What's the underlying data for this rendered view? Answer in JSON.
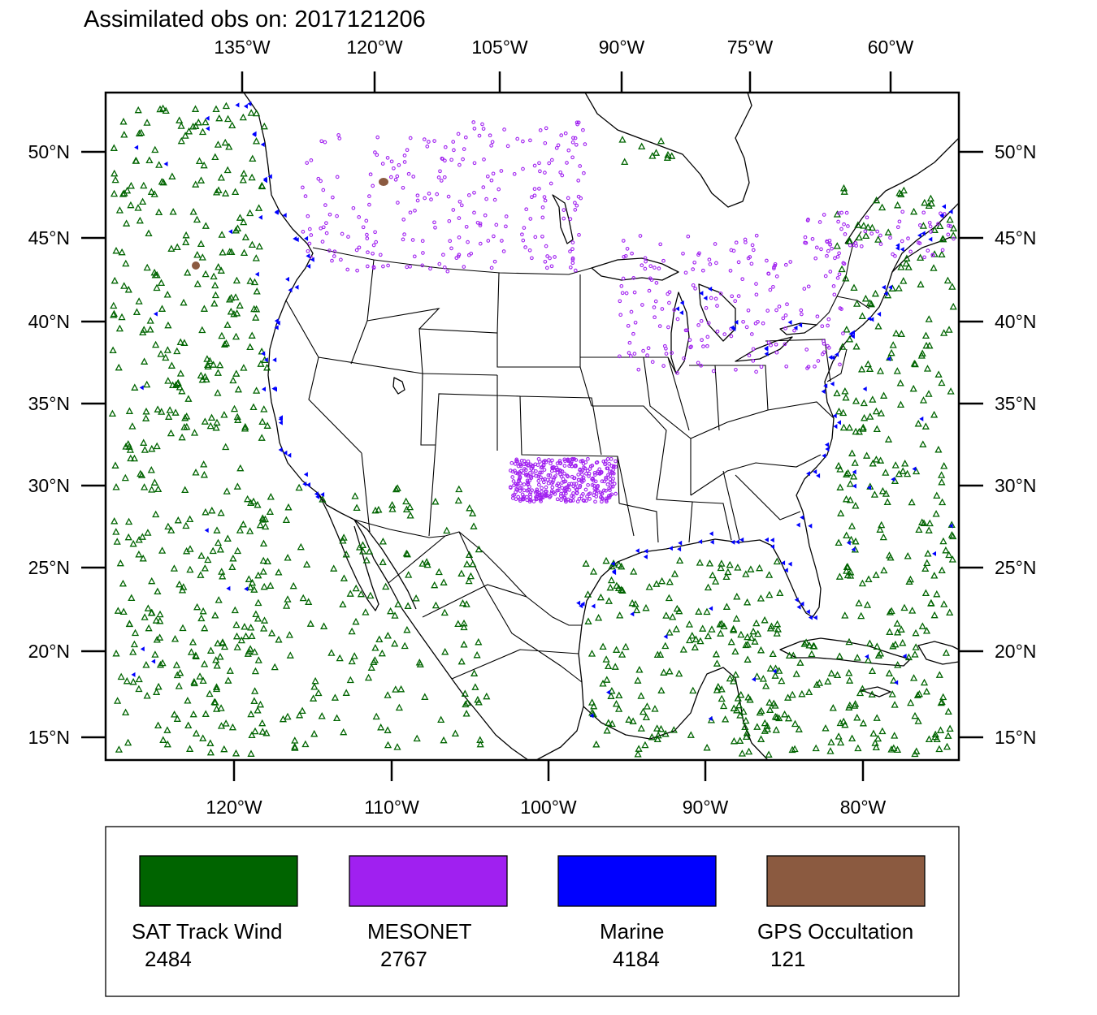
{
  "title": "Assimilated obs on: 2017121206",
  "axes": {
    "top_labels": [
      "135°W",
      "120°W",
      "105°W",
      "90°W",
      "75°W",
      "60°W"
    ],
    "bottom_labels": [
      "120°W",
      "110°W",
      "100°W",
      "90°W",
      "80°W"
    ],
    "left_labels": [
      "50°N",
      "45°N",
      "40°N",
      "35°N",
      "30°N",
      "25°N",
      "20°N",
      "15°N"
    ],
    "right_labels": [
      "50°N",
      "45°N",
      "40°N",
      "35°N",
      "30°N",
      "25°N",
      "20°N",
      "15°N"
    ]
  },
  "legend": [
    {
      "label": "SAT Track Wind",
      "count": "2484",
      "color": "#006400"
    },
    {
      "label": "MESONET",
      "count": "2767",
      "color": "#a020f0"
    },
    {
      "label": "Marine",
      "count": "4184",
      "color": "#0000ff"
    },
    {
      "label": "GPS Occultation",
      "count": "121",
      "color": "#8b5a40"
    }
  ],
  "colors": {
    "sat": "#006400",
    "mesonet": "#a020f0",
    "marine": "#0000ff",
    "gps": "#8b5a40"
  }
}
